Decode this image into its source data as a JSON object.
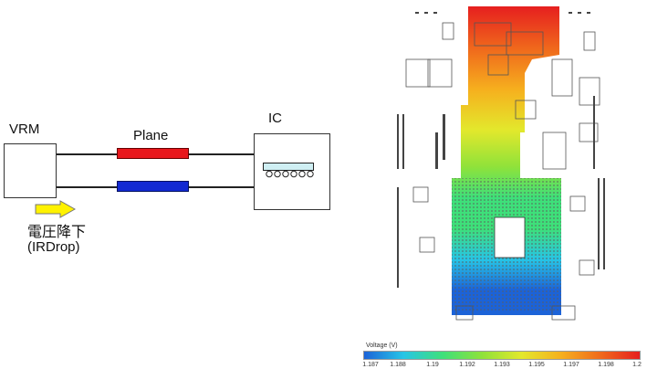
{
  "diagram": {
    "vrm_label": "VRM",
    "plane_label": "Plane",
    "ic_label": "IC",
    "irdrop_jp": "電圧降下",
    "irdrop_en": "(IRDrop)",
    "colors": {
      "plane_top": "#e8171c",
      "plane_bottom": "#1229d2",
      "arrow": "#fff200",
      "chip": "#cfeff3"
    }
  },
  "colorbar": {
    "title": "Voltage (V)",
    "ticks": [
      "1.187",
      "1.188",
      "1.19",
      "1.192",
      "1.193",
      "1.195",
      "1.197",
      "1.198",
      "1.2"
    ],
    "colors": [
      "#1c63d8",
      "#27c5e6",
      "#3ee07a",
      "#8fe23a",
      "#e3e82c",
      "#f6b01e",
      "#f06a1c",
      "#e61f1f"
    ]
  }
}
